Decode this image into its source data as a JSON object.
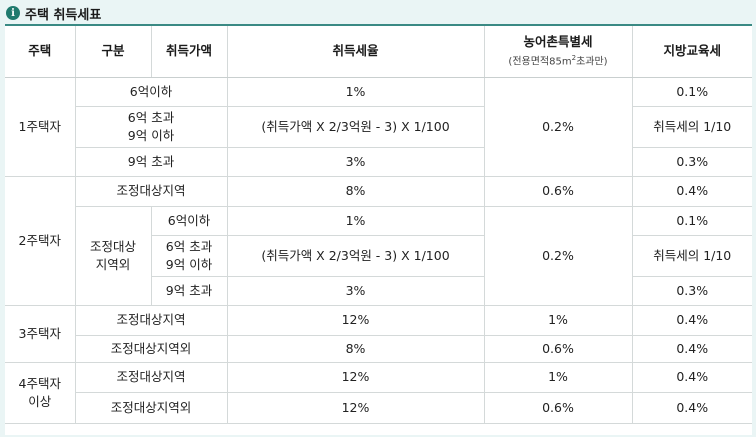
{
  "header": {
    "title": "주택 취득세표"
  },
  "columns": {
    "house": "주택",
    "division": "구분",
    "price": "취득가액",
    "rate": "취득세율",
    "rural": "농어촌특별세",
    "rural_sub_pre": "(전용면적85m",
    "rural_sub_sup": "2",
    "rural_sub_post": "초과만)",
    "edu": "지방교육세"
  },
  "rows": {
    "h1": {
      "label": "1주택자",
      "r1": {
        "division": "6억이하",
        "rate": "1%",
        "edu": "0.1%"
      },
      "r2": {
        "division_l1": "6억 초과",
        "division_l2": "9억 이하",
        "rate": "(취득가액 X 2/3억원 - 3) X 1/100",
        "edu": "취득세의 1/10"
      },
      "r3": {
        "division": "9억 초과",
        "rate": "3%",
        "edu": "0.3%"
      },
      "rural": "0.2%"
    },
    "h2": {
      "label": "2주택자",
      "r1": {
        "division": "조정대상지역",
        "rate": "8%",
        "rural": "0.6%",
        "edu": "0.4%"
      },
      "sub_label_l1": "조정대상",
      "sub_label_l2": "지역외",
      "r2": {
        "price": "6억이하",
        "rate": "1%",
        "edu": "0.1%"
      },
      "r3": {
        "price_l1": "6억 초과",
        "price_l2": "9억 이하",
        "rate": "(취득가액 X 2/3억원 - 3) X 1/100",
        "edu": "취득세의 1/10"
      },
      "r4": {
        "price": "9억 초과",
        "rate": "3%",
        "edu": "0.3%"
      },
      "rural": "0.2%"
    },
    "h3": {
      "label": "3주택자",
      "r1": {
        "division": "조정대상지역",
        "rate": "12%",
        "rural": "1%",
        "edu": "0.4%"
      },
      "r2": {
        "division": "조정대상지역외",
        "rate": "8%",
        "rural": "0.6%",
        "edu": "0.4%"
      }
    },
    "h4": {
      "label_l1": "4주택자",
      "label_l2": "이상",
      "r1": {
        "division": "조정대상지역",
        "rate": "12%",
        "rural": "1%",
        "edu": "0.4%"
      },
      "r2": {
        "division": "조정대상지역외",
        "rate": "12%",
        "rural": "0.6%",
        "edu": "0.4%"
      }
    }
  }
}
